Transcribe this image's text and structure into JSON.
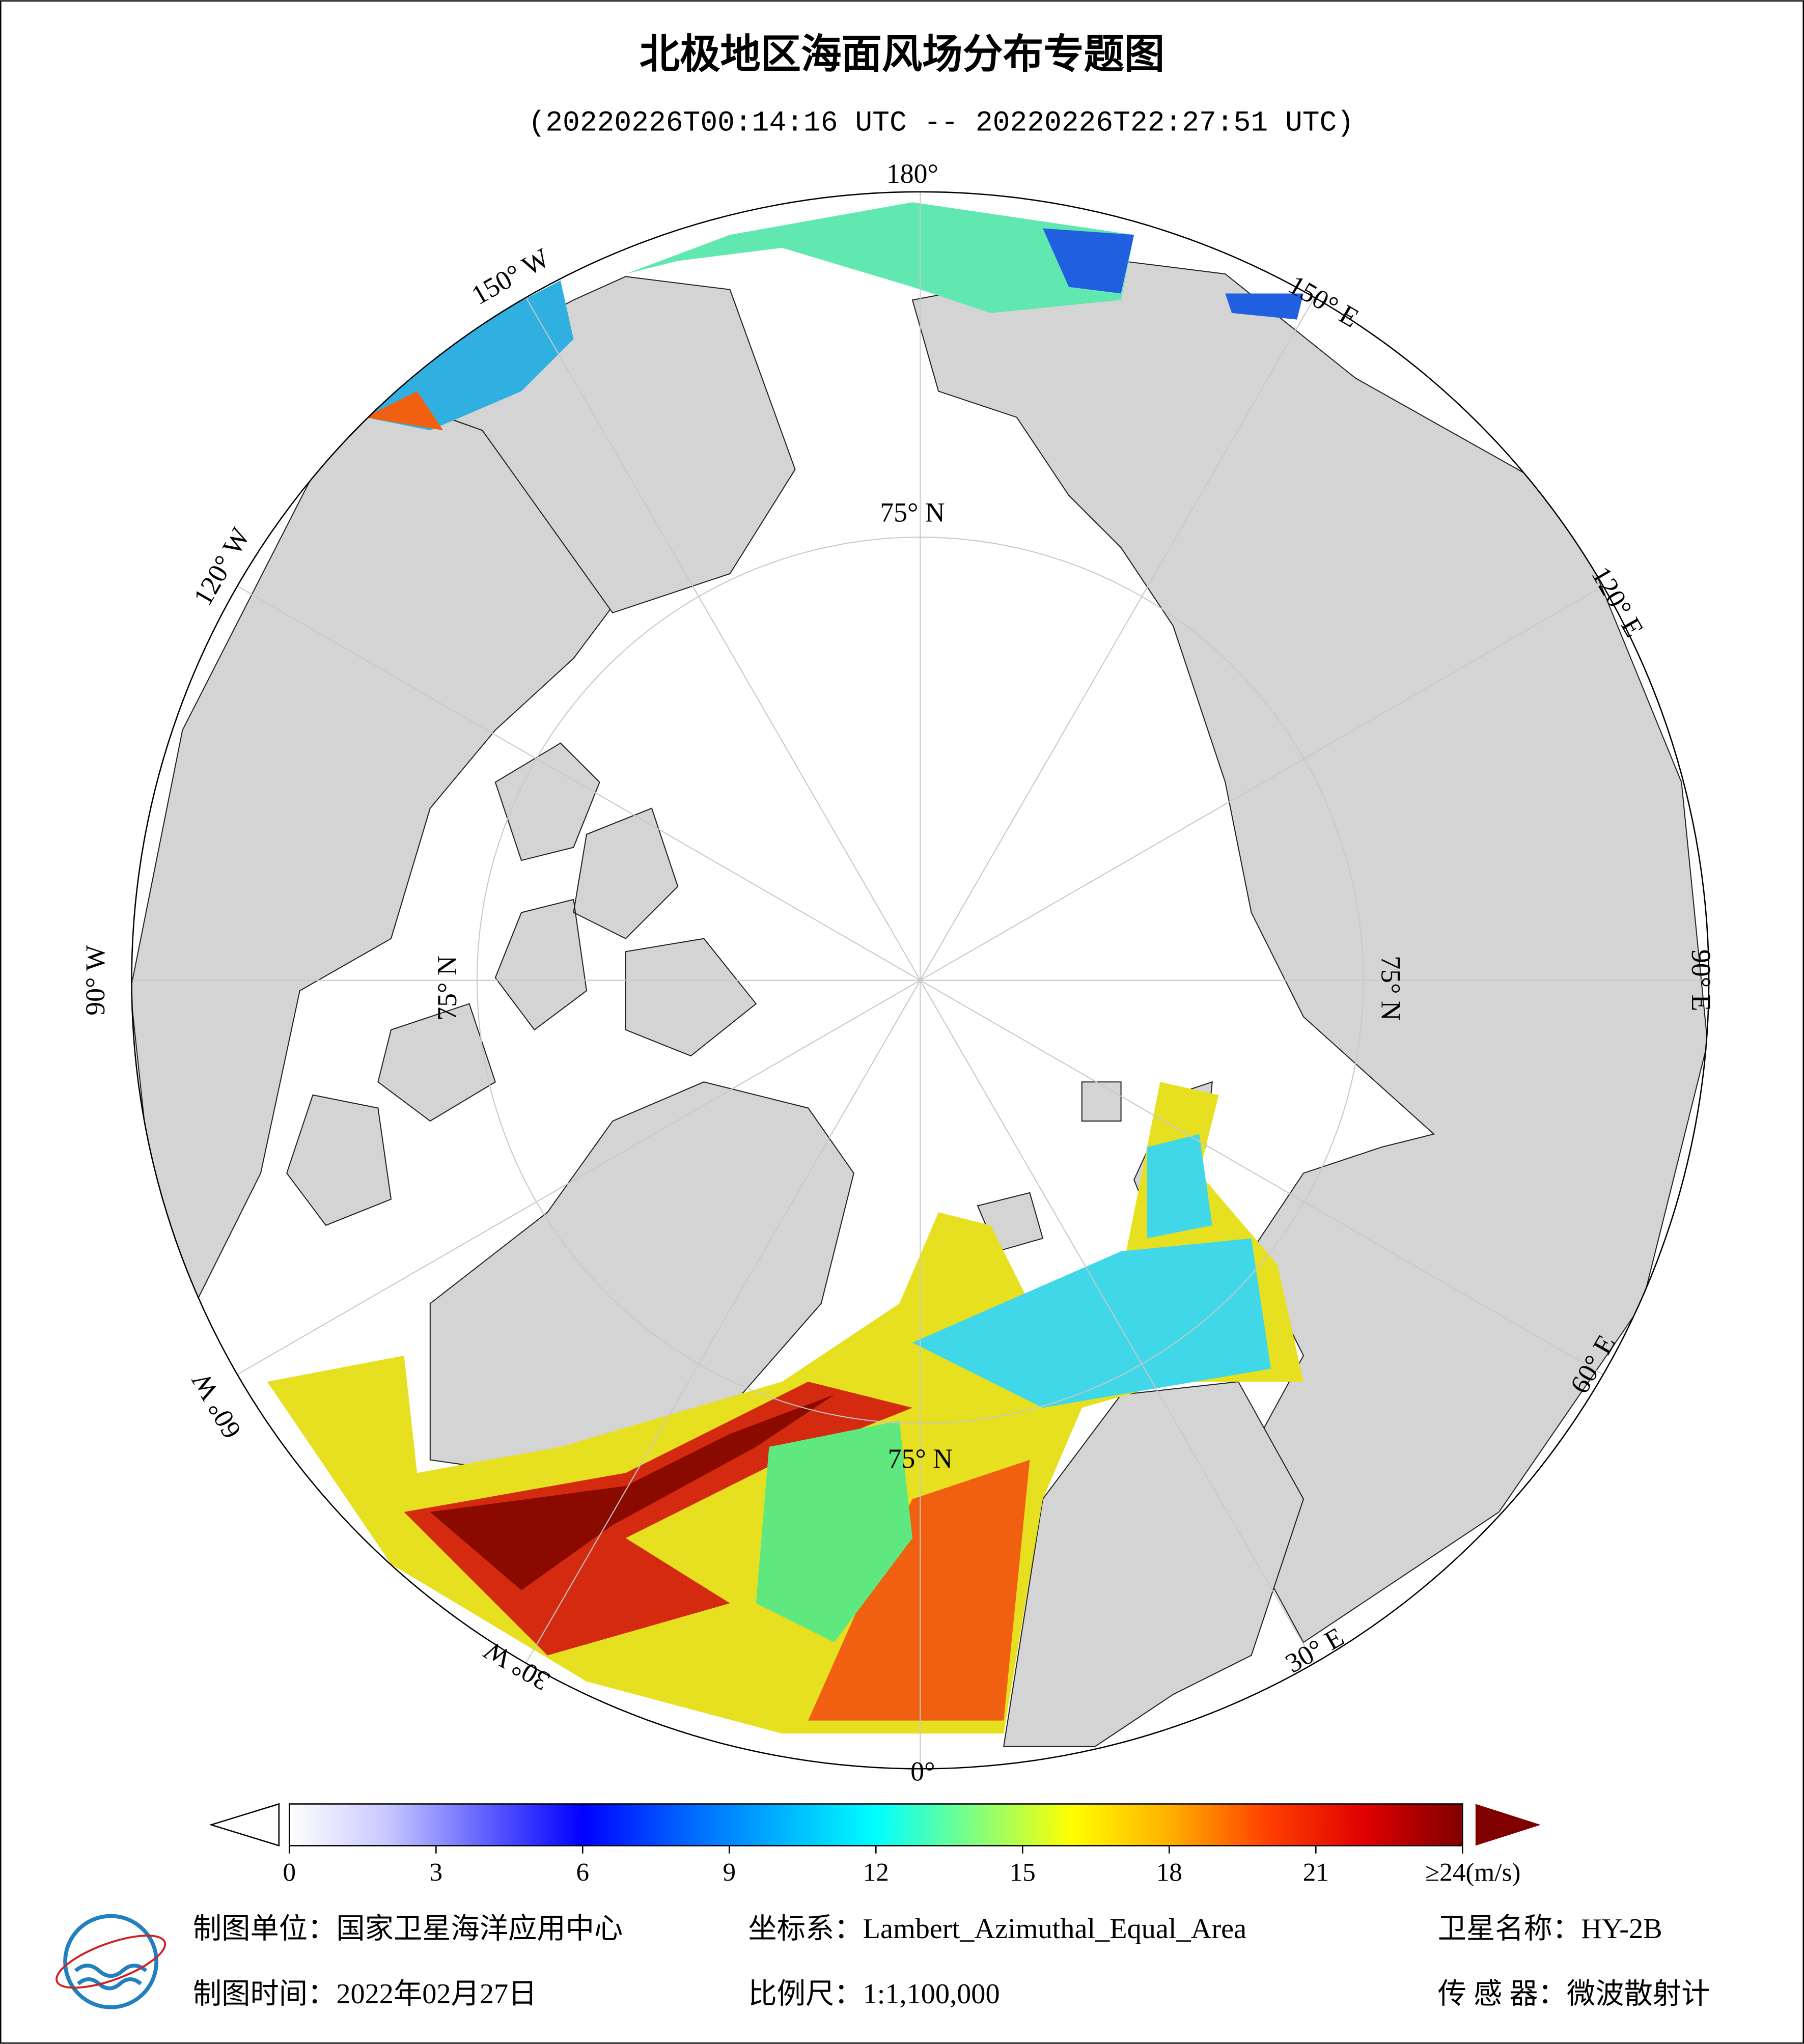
{
  "header": {
    "title": "北极地区海面风场分布专题图",
    "subtitle": "(20220226T00:14:16 UTC -- 20220226T22:27:51 UTC)"
  },
  "map": {
    "longitude_labels": [
      "180°",
      "150° E",
      "120° E",
      "90° E",
      "60° E",
      "30° E",
      "0°",
      "30° W",
      "60° W",
      "90° W",
      "120° W",
      "150° W"
    ],
    "latitude_label": "75° N"
  },
  "colorbar": {
    "range": [
      0,
      24
    ],
    "ticks": [
      0,
      3,
      6,
      9,
      12,
      15,
      18,
      21,
      {
        "value": 24,
        "label": "≥24(m/s)"
      }
    ],
    "colors": [
      "#ffffff",
      "#c8c8ff",
      "#6060ff",
      "#0000ff",
      "#0060ff",
      "#00b0ff",
      "#00ffff",
      "#80ff80",
      "#ffff00",
      "#ffb000",
      "#ff4000",
      "#e00000",
      "#800000"
    ]
  },
  "footer": {
    "unit": "制图单位：国家卫星海洋应用中心",
    "coordinate_system": "坐标系：Lambert_Azimuthal_Equal_Area",
    "satellite": "卫星名称：HY-2B",
    "date": "制图时间：2022年02月27日",
    "scale": "比例尺：1:1,100,000",
    "sensor": "传 感 器：微波散射计"
  }
}
